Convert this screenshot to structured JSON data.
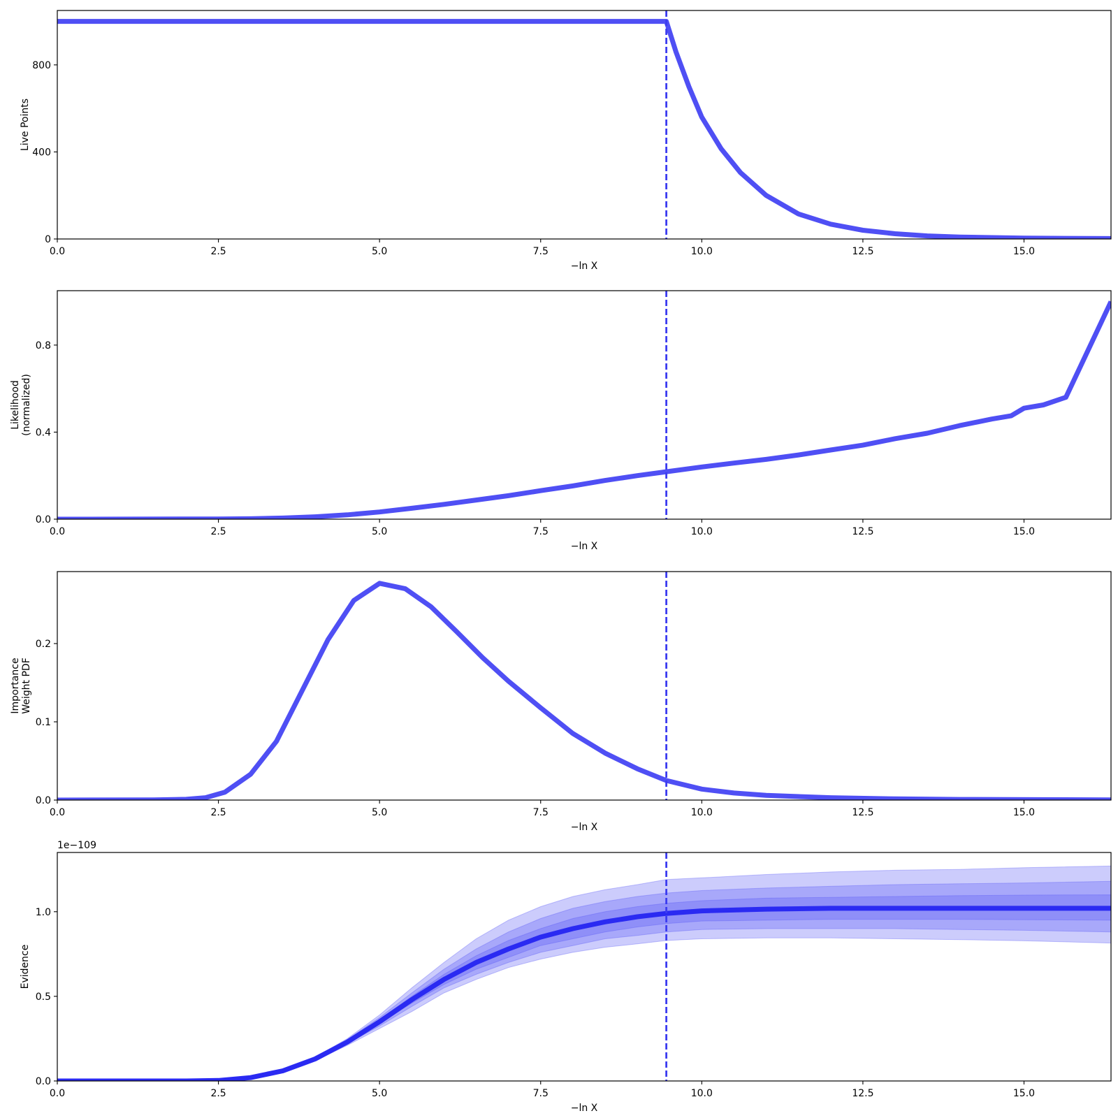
{
  "colors": {
    "line": "#4f4ff4",
    "line_dark": "#2a2af2",
    "band": "#5555f5",
    "vline": "#3c3cf0"
  },
  "chart_data": [
    {
      "type": "line",
      "ylabel": [
        "Live Points"
      ],
      "xlabel": "−ln X",
      "xlim": [
        0,
        16.35
      ],
      "ylim": [
        0,
        1050
      ],
      "xticks": [
        0,
        2.5,
        5,
        7.5,
        10,
        12.5,
        15
      ],
      "xtick_labels": [
        "0.0",
        "2.5",
        "5.0",
        "7.5",
        "10.0",
        "12.5",
        "15.0"
      ],
      "yticks": [
        0,
        400,
        800
      ],
      "ytick_labels": [
        "0",
        "400",
        "800"
      ],
      "vline": 9.45,
      "series": [
        {
          "x": [
            0,
            9.45,
            9.6,
            9.8,
            10.0,
            10.3,
            10.6,
            11.0,
            11.5,
            12.0,
            12.5,
            13.0,
            13.5,
            14.0,
            15.0,
            16.35
          ],
          "y": [
            1000,
            1000,
            860,
            700,
            560,
            415,
            305,
            200,
            115,
            68,
            40,
            24,
            14,
            9,
            4,
            2
          ]
        }
      ]
    },
    {
      "type": "line",
      "ylabel": [
        "Likelihood",
        "(normalized)"
      ],
      "xlabel": "−ln X",
      "xlim": [
        0,
        16.35
      ],
      "ylim": [
        0,
        1.05
      ],
      "xticks": [
        0,
        2.5,
        5,
        7.5,
        10,
        12.5,
        15
      ],
      "xtick_labels": [
        "0.0",
        "2.5",
        "5.0",
        "7.5",
        "10.0",
        "12.5",
        "15.0"
      ],
      "yticks": [
        0,
        0.4,
        0.8
      ],
      "ytick_labels": [
        "0.0",
        "0.4",
        "0.8"
      ],
      "vline": 9.45,
      "series": [
        {
          "x": [
            0,
            2.5,
            3.0,
            3.5,
            4.0,
            4.5,
            5.0,
            5.5,
            6.0,
            6.5,
            7.0,
            7.5,
            8.0,
            8.5,
            9.0,
            9.45,
            10.0,
            10.5,
            11.0,
            11.5,
            12.0,
            12.5,
            13.0,
            13.5,
            14.0,
            14.5,
            14.8,
            15.0,
            15.3,
            15.65,
            16.35
          ],
          "y": [
            0.0,
            0.001,
            0.002,
            0.005,
            0.011,
            0.02,
            0.033,
            0.05,
            0.068,
            0.088,
            0.108,
            0.131,
            0.153,
            0.178,
            0.2,
            0.218,
            0.24,
            0.258,
            0.275,
            0.295,
            0.318,
            0.34,
            0.37,
            0.395,
            0.43,
            0.46,
            0.475,
            0.51,
            0.525,
            0.56,
            1.0
          ]
        }
      ]
    },
    {
      "type": "line",
      "ylabel": [
        "Importance",
        "Weight PDF"
      ],
      "xlabel": "−ln X",
      "xlim": [
        0,
        16.35
      ],
      "ylim": [
        0,
        0.292
      ],
      "xticks": [
        0,
        2.5,
        5,
        7.5,
        10,
        12.5,
        15
      ],
      "xtick_labels": [
        "0.0",
        "2.5",
        "5.0",
        "7.5",
        "10.0",
        "12.5",
        "15.0"
      ],
      "yticks": [
        0,
        0.1,
        0.2
      ],
      "ytick_labels": [
        "0.0",
        "0.1",
        "0.2"
      ],
      "vline": 9.45,
      "series": [
        {
          "x": [
            0,
            1.5,
            2.0,
            2.3,
            2.6,
            3.0,
            3.4,
            3.8,
            4.2,
            4.6,
            5.0,
            5.4,
            5.8,
            6.2,
            6.6,
            7.0,
            7.5,
            8.0,
            8.5,
            9.0,
            9.45,
            10.0,
            10.5,
            11.0,
            12.0,
            13.0,
            14.0,
            16.35
          ],
          "y": [
            0,
            0.0003,
            0.001,
            0.003,
            0.01,
            0.033,
            0.075,
            0.14,
            0.205,
            0.255,
            0.277,
            0.27,
            0.247,
            0.215,
            0.182,
            0.152,
            0.118,
            0.085,
            0.06,
            0.04,
            0.025,
            0.014,
            0.009,
            0.006,
            0.003,
            0.0015,
            0.0008,
            0.0003
          ]
        }
      ]
    },
    {
      "type": "area",
      "ylabel": [
        "Evidence"
      ],
      "xlabel": "−ln X",
      "offset_text": "1e−109",
      "xlim": [
        0,
        16.35
      ],
      "ylim": [
        0,
        1.35
      ],
      "xticks": [
        0,
        2.5,
        5,
        7.5,
        10,
        12.5,
        15
      ],
      "xtick_labels": [
        "0.0",
        "2.5",
        "5.0",
        "7.5",
        "10.0",
        "12.5",
        "15.0"
      ],
      "yticks": [
        0,
        0.5,
        1.0
      ],
      "ytick_labels": [
        "0.0",
        "0.5",
        "1.0"
      ],
      "vline": 9.45,
      "x": [
        0,
        2.0,
        2.5,
        3.0,
        3.5,
        4.0,
        4.5,
        5.0,
        5.5,
        6.0,
        6.5,
        7.0,
        7.5,
        8.0,
        8.5,
        9.0,
        9.45,
        10.0,
        11.0,
        12.0,
        13.0,
        14.0,
        15.0,
        16.35
      ],
      "median": [
        0,
        0.0,
        0.003,
        0.02,
        0.06,
        0.13,
        0.23,
        0.35,
        0.48,
        0.6,
        0.7,
        0.78,
        0.85,
        0.9,
        0.94,
        0.97,
        0.99,
        1.005,
        1.015,
        1.02,
        1.02,
        1.02,
        1.02,
        1.02
      ],
      "bands": [
        {
          "upper": [
            0,
            0.0,
            0.003,
            0.02,
            0.063,
            0.14,
            0.25,
            0.39,
            0.55,
            0.7,
            0.84,
            0.95,
            1.03,
            1.09,
            1.13,
            1.16,
            1.19,
            1.2,
            1.22,
            1.235,
            1.245,
            1.25,
            1.26,
            1.27
          ],
          "lower": [
            0,
            0.0,
            0.003,
            0.02,
            0.057,
            0.12,
            0.21,
            0.31,
            0.41,
            0.52,
            0.6,
            0.67,
            0.72,
            0.76,
            0.79,
            0.81,
            0.83,
            0.84,
            0.845,
            0.845,
            0.84,
            0.835,
            0.828,
            0.815
          ]
        },
        {
          "upper": [
            0,
            0.0,
            0.003,
            0.02,
            0.062,
            0.135,
            0.245,
            0.375,
            0.52,
            0.66,
            0.78,
            0.88,
            0.96,
            1.02,
            1.06,
            1.09,
            1.11,
            1.125,
            1.14,
            1.15,
            1.16,
            1.165,
            1.17,
            1.18
          ],
          "lower": [
            0,
            0.0,
            0.003,
            0.02,
            0.058,
            0.125,
            0.22,
            0.325,
            0.44,
            0.55,
            0.63,
            0.7,
            0.76,
            0.8,
            0.84,
            0.86,
            0.88,
            0.895,
            0.9,
            0.9,
            0.9,
            0.895,
            0.89,
            0.88
          ]
        },
        {
          "upper": [
            0,
            0.0,
            0.003,
            0.02,
            0.061,
            0.133,
            0.238,
            0.362,
            0.5,
            0.63,
            0.74,
            0.83,
            0.9,
            0.96,
            1.0,
            1.03,
            1.05,
            1.065,
            1.08,
            1.085,
            1.09,
            1.095,
            1.098,
            1.1
          ],
          "lower": [
            0,
            0.0,
            0.003,
            0.02,
            0.059,
            0.127,
            0.225,
            0.34,
            0.46,
            0.57,
            0.66,
            0.73,
            0.8,
            0.84,
            0.88,
            0.91,
            0.93,
            0.945,
            0.95,
            0.955,
            0.955,
            0.955,
            0.953,
            0.95
          ]
        }
      ]
    }
  ]
}
